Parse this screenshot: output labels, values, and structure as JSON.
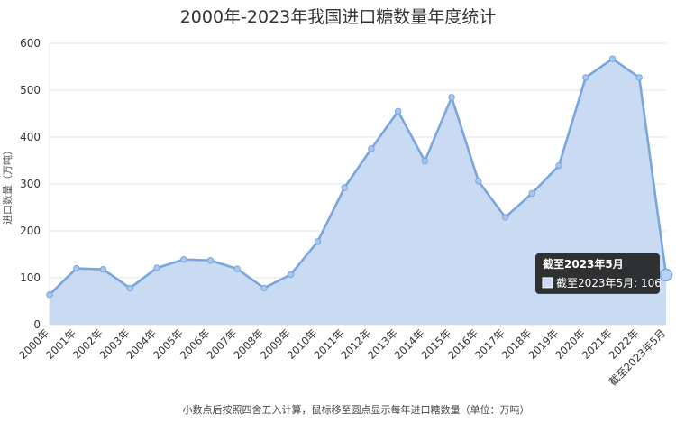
{
  "chart_data": {
    "type": "area",
    "title": "2000年-2023年我国进口糖数量年度统计",
    "xlabel": "",
    "ylabel": "进口数量（万吨）",
    "ylim": [
      0,
      600
    ],
    "yticks": [
      0,
      100,
      200,
      300,
      400,
      500,
      600
    ],
    "grid": true,
    "legend": "none",
    "colors": {
      "line": "#7aa6de",
      "fill": "#c8dbf3",
      "grid": "#e3e3e3",
      "tooltip_bg": "#222222"
    },
    "categories": [
      "2000年",
      "2001年",
      "2002年",
      "2003年",
      "2004年",
      "2005年",
      "2006年",
      "2007年",
      "2008年",
      "2009年",
      "2010年",
      "2011年",
      "2012年",
      "2013年",
      "2014年",
      "2015年",
      "2016年",
      "2017年",
      "2018年",
      "2019年",
      "2020年",
      "2021年",
      "2022年",
      "截至2023年5月"
    ],
    "values": [
      64,
      120,
      118,
      78,
      121,
      139,
      137,
      119,
      78,
      107,
      177,
      292,
      375,
      455,
      349,
      485,
      306,
      229,
      280,
      339,
      527,
      567,
      527,
      106
    ],
    "footnote": "小数点后按照四舍五入计算，鼠标移至圆点显示每年进口糖数量（单位：万吨）",
    "tooltip": {
      "title": "截至2023年5月",
      "label": "截至2023年5月: 106"
    }
  }
}
